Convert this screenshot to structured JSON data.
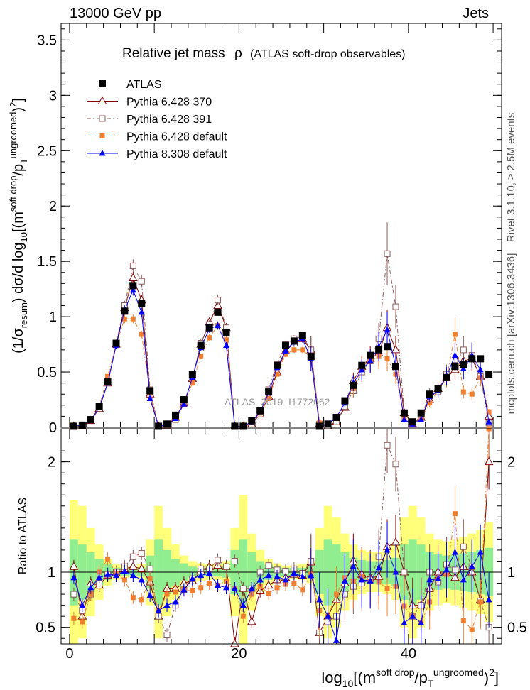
{
  "header": {
    "left": "13000 GeV pp",
    "right": "Jets"
  },
  "side_texts": {
    "rivet": "Rivet 3.1.10, ≥ 2.5M events",
    "mcplots": "mcplots.cern.ch [arXiv:1306.3436]"
  },
  "chart_data": [
    {
      "type": "line",
      "panel": "main",
      "title": "Relative jet mass",
      "title_symbol": "ρ",
      "subtitle": "(ATLAS soft-drop observables)",
      "watermark": "ATLAS_2019_I1772062",
      "ylabel": {
        "pre": "(1/σ",
        "sub1": "resum",
        "mid": ") dσ/d log",
        "sub2": "10",
        "mid2": "[(m",
        "sup1": "soft drop",
        "mid3": "/p",
        "sub3": "T",
        "sup2": "ungroomed",
        "post": ")",
        "sup3": "2",
        "end": "]"
      },
      "xlim": [
        -1,
        51
      ],
      "ylim": [
        0,
        3.65
      ],
      "yticks": [
        "0",
        "0.5",
        "1",
        "1.5",
        "2",
        "2.5",
        "3",
        "3.5"
      ],
      "legend_position": "top-left",
      "series": [
        {
          "name": "ATLAS",
          "color": "#000000",
          "marker": "filled-square",
          "x": [
            0.5,
            1.5,
            2.5,
            3.5,
            4.5,
            5.5,
            6.5,
            7.5,
            8.5,
            9.5,
            10.5,
            11.5,
            12.5,
            13.5,
            14.5,
            15.5,
            16.5,
            17.5,
            18.5,
            19.5,
            20.5,
            21.5,
            22.5,
            23.5,
            24.5,
            25.5,
            26.5,
            27.5,
            28.5,
            29.5,
            30.5,
            31.5,
            32.5,
            33.5,
            34.5,
            35.5,
            36.5,
            37.5,
            38.5,
            39.5,
            40.5,
            41.5,
            42.5,
            43.5,
            44.5,
            45.5,
            46.5,
            47.5,
            48.5,
            49.5
          ],
          "y": [
            0.01,
            0.02,
            0.07,
            0.19,
            0.41,
            0.76,
            1.05,
            1.28,
            1.12,
            0.33,
            0.01,
            0.03,
            0.11,
            0.25,
            0.48,
            0.74,
            0.9,
            1.04,
            0.86,
            0.01,
            0.01,
            0.06,
            0.15,
            0.32,
            0.56,
            0.74,
            0.78,
            0.83,
            0.64,
            0.01,
            0.03,
            0.09,
            0.24,
            0.38,
            0.56,
            0.65,
            0.7,
            0.73,
            0.55,
            0.13,
            0.05,
            0.13,
            0.3,
            0.35,
            0.45,
            0.55,
            0.57,
            0.62,
            0.62,
            0.48
          ]
        },
        {
          "name": "Pythia 6.428 370",
          "color": "#800000",
          "marker": "open-triangle",
          "dash": "",
          "x": [
            0.5,
            1.5,
            2.5,
            3.5,
            4.5,
            5.5,
            6.5,
            7.5,
            8.5,
            9.5,
            10.5,
            11.5,
            12.5,
            13.5,
            14.5,
            15.5,
            16.5,
            17.5,
            18.5,
            19.5,
            20.5,
            21.5,
            22.5,
            23.5,
            24.5,
            25.5,
            26.5,
            27.5,
            28.5,
            29.5,
            30.5,
            31.5,
            32.5,
            33.5,
            34.5,
            35.5,
            36.5,
            37.5,
            38.5,
            39.5,
            40.5,
            41.5,
            42.5,
            43.5,
            44.5,
            45.5,
            46.5,
            47.5,
            48.5,
            49.5
          ],
          "y": [
            0.01,
            0.01,
            0.06,
            0.17,
            0.4,
            0.75,
            1.08,
            1.35,
            1.15,
            0.3,
            0.01,
            0.02,
            0.09,
            0.22,
            0.44,
            0.75,
            0.95,
            1.1,
            0.9,
            0.01,
            0.01,
            0.03,
            0.12,
            0.28,
            0.5,
            0.69,
            0.76,
            0.8,
            0.7,
            0.03,
            0.01,
            0.05,
            0.18,
            0.42,
            0.55,
            0.62,
            0.67,
            0.9,
            0.7,
            0.13,
            0.03,
            0.09,
            0.25,
            0.35,
            0.45,
            0.52,
            0.6,
            0.62,
            0.46,
            0.1
          ]
        },
        {
          "name": "Pythia 6.428 391",
          "color": "#8c5a5a",
          "marker": "open-square",
          "dash": "6,3,2,3",
          "x": [
            0.5,
            1.5,
            2.5,
            3.5,
            4.5,
            5.5,
            6.5,
            7.5,
            8.5,
            9.5,
            10.5,
            11.5,
            12.5,
            13.5,
            14.5,
            15.5,
            16.5,
            17.5,
            18.5,
            19.5,
            20.5,
            21.5,
            22.5,
            23.5,
            24.5,
            25.5,
            26.5,
            27.5,
            28.5,
            29.5,
            30.5,
            31.5,
            32.5,
            33.5,
            34.5,
            35.5,
            36.5,
            37.5,
            38.5,
            39.5,
            40.5,
            41.5,
            42.5,
            43.5,
            44.5,
            45.5,
            46.5,
            47.5,
            48.5,
            49.5
          ],
          "y": [
            0.01,
            0.01,
            0.07,
            0.17,
            0.4,
            0.76,
            1.1,
            1.46,
            1.32,
            0.34,
            0.01,
            0.02,
            0.07,
            0.21,
            0.45,
            0.76,
            0.93,
            1.15,
            0.9,
            0.01,
            0.01,
            0.05,
            0.15,
            0.34,
            0.57,
            0.75,
            0.8,
            0.82,
            0.7,
            0.03,
            0.01,
            0.05,
            0.19,
            0.33,
            0.5,
            0.6,
            0.8,
            1.57,
            1.09,
            0.13,
            0.03,
            0.09,
            0.3,
            0.32,
            0.48,
            0.56,
            0.7,
            0.65,
            0.46,
            0.04
          ]
        },
        {
          "name": "Pythia 6.428 default",
          "color": "#f08030",
          "marker": "filled-square-small",
          "dash": "6,3,2,3",
          "x": [
            0.5,
            1.5,
            2.5,
            3.5,
            4.5,
            5.5,
            6.5,
            7.5,
            8.5,
            9.5,
            10.5,
            11.5,
            12.5,
            13.5,
            14.5,
            15.5,
            16.5,
            17.5,
            18.5,
            19.5,
            20.5,
            21.5,
            22.5,
            23.5,
            24.5,
            25.5,
            26.5,
            27.5,
            28.5,
            29.5,
            30.5,
            31.5,
            32.5,
            33.5,
            34.5,
            35.5,
            36.5,
            37.5,
            38.5,
            39.5,
            40.5,
            41.5,
            42.5,
            43.5,
            44.5,
            45.5,
            46.5,
            47.5,
            48.5,
            49.5
          ],
          "y": [
            0.01,
            0.01,
            0.06,
            0.19,
            0.46,
            0.75,
            0.98,
            0.98,
            0.84,
            0.31,
            0.01,
            0.03,
            0.09,
            0.21,
            0.4,
            0.64,
            0.81,
            0.92,
            0.79,
            0.01,
            0.01,
            0.05,
            0.13,
            0.26,
            0.48,
            0.66,
            0.7,
            0.7,
            0.63,
            0.04,
            0.02,
            0.08,
            0.23,
            0.35,
            0.54,
            0.6,
            0.64,
            0.62,
            0.48,
            0.09,
            0.03,
            0.07,
            0.22,
            0.33,
            0.44,
            0.84,
            0.32,
            0.3,
            0.45,
            0.14
          ]
        },
        {
          "name": "Pythia 8.308 default",
          "color": "#0000ff",
          "marker": "filled-triangle",
          "dash": "",
          "x": [
            0.5,
            1.5,
            2.5,
            3.5,
            4.5,
            5.5,
            6.5,
            7.5,
            8.5,
            9.5,
            10.5,
            11.5,
            12.5,
            13.5,
            14.5,
            15.5,
            16.5,
            17.5,
            18.5,
            19.5,
            20.5,
            21.5,
            22.5,
            23.5,
            24.5,
            25.5,
            26.5,
            27.5,
            28.5,
            29.5,
            30.5,
            31.5,
            32.5,
            33.5,
            34.5,
            35.5,
            36.5,
            37.5,
            38.5,
            39.5,
            40.5,
            41.5,
            42.5,
            43.5,
            44.5,
            45.5,
            46.5,
            47.5,
            48.5,
            49.5
          ],
          "y": [
            0.01,
            0.02,
            0.06,
            0.18,
            0.4,
            0.74,
            1.06,
            1.24,
            1.04,
            0.26,
            0.01,
            0.02,
            0.08,
            0.21,
            0.45,
            0.72,
            0.89,
            0.92,
            0.74,
            0.01,
            0.01,
            0.05,
            0.14,
            0.31,
            0.54,
            0.69,
            0.77,
            0.8,
            0.62,
            0.01,
            0.03,
            0.09,
            0.22,
            0.4,
            0.52,
            0.6,
            0.73,
            0.88,
            0.55,
            0.07,
            0.03,
            0.07,
            0.28,
            0.33,
            0.46,
            0.65,
            0.53,
            0.65,
            0.52,
            0.05
          ]
        }
      ]
    },
    {
      "type": "line",
      "panel": "ratio",
      "ylabel": "Ratio to ATLAS",
      "xlabel": {
        "pre": "log",
        "sub1": "10",
        "mid": "[(m",
        "sup1": "soft drop",
        "mid2": "/p",
        "sub2": "T",
        "sup2": "ungroomed",
        "post": ")",
        "sup3": "2",
        "end": "]"
      },
      "xlim": [
        -1,
        51
      ],
      "ylim": [
        0.35,
        2.3
      ],
      "xticks": [
        "0",
        "20",
        "40"
      ],
      "yticks": [
        "0.5",
        "1",
        "2"
      ],
      "reference_line": 1,
      "band_colors": {
        "outer": "#ffff7a",
        "inner": "#90ee90"
      },
      "bands": {
        "x": [
          0.5,
          1.5,
          2.5,
          3.5,
          4.5,
          5.5,
          6.5,
          7.5,
          8.5,
          9.5,
          10.5,
          11.5,
          12.5,
          13.5,
          14.5,
          15.5,
          16.5,
          17.5,
          18.5,
          19.5,
          20.5,
          21.5,
          22.5,
          23.5,
          24.5,
          25.5,
          26.5,
          27.5,
          28.5,
          29.5,
          30.5,
          31.5,
          32.5,
          33.5,
          34.5,
          35.5,
          36.5,
          37.5,
          38.5,
          39.5,
          40.5,
          41.5,
          42.5,
          43.5,
          44.5,
          45.5,
          46.5,
          47.5,
          48.5,
          49.5
        ],
        "outer": [
          0.65,
          0.6,
          0.4,
          0.25,
          0.12,
          0.07,
          0.05,
          0.05,
          0.07,
          0.3,
          0.6,
          0.4,
          0.25,
          0.15,
          0.1,
          0.08,
          0.07,
          0.07,
          0.1,
          0.4,
          0.7,
          0.35,
          0.2,
          0.12,
          0.08,
          0.06,
          0.06,
          0.07,
          0.1,
          0.4,
          0.6,
          0.5,
          0.35,
          0.25,
          0.2,
          0.18,
          0.18,
          0.2,
          0.25,
          0.5,
          0.6,
          0.5,
          0.35,
          0.3,
          0.28,
          0.3,
          0.32,
          0.35,
          0.38,
          0.45
        ],
        "inner": [
          0.3,
          0.25,
          0.18,
          0.12,
          0.07,
          0.04,
          0.03,
          0.03,
          0.04,
          0.15,
          0.3,
          0.2,
          0.12,
          0.08,
          0.05,
          0.04,
          0.04,
          0.04,
          0.05,
          0.2,
          0.3,
          0.18,
          0.1,
          0.07,
          0.05,
          0.04,
          0.04,
          0.04,
          0.06,
          0.2,
          0.3,
          0.25,
          0.18,
          0.13,
          0.11,
          0.1,
          0.1,
          0.11,
          0.13,
          0.25,
          0.3,
          0.25,
          0.18,
          0.16,
          0.15,
          0.16,
          0.17,
          0.18,
          0.2,
          0.22
        ]
      },
      "series": [
        {
          "name": "Pythia 6.428 370",
          "y": [
            1.05,
            0.6,
            0.9,
            0.88,
            0.97,
            0.99,
            1.03,
            1.05,
            1.03,
            0.91,
            0.6,
            0.85,
            0.85,
            0.9,
            0.92,
            1.01,
            1.05,
            1.06,
            1.05,
            0.35,
            0.85,
            0.55,
            0.83,
            0.88,
            0.93,
            0.95,
            0.98,
            0.97,
            1.09,
            0.45,
            0.6,
            0.75,
            0.9,
            1.1,
            0.98,
            0.95,
            0.96,
            1.23,
            1.27,
            1.0,
            0.7,
            0.7,
            0.85,
            1.0,
            1.0,
            0.95,
            1.05,
            1.0,
            0.75,
            2.0
          ]
        },
        {
          "name": "Pythia 6.428 391",
          "y": [
            0.8,
            0.65,
            0.8,
            0.9,
            0.98,
            1.0,
            1.05,
            1.14,
            1.17,
            1.03,
            0.6,
            0.43,
            0.7,
            0.84,
            0.94,
            1.03,
            1.03,
            1.11,
            1.05,
            1.1,
            0.85,
            0.85,
            1.0,
            1.06,
            1.02,
            1.01,
            1.03,
            0.99,
            1.1,
            0.45,
            0.55,
            0.6,
            0.8,
            0.87,
            0.9,
            0.93,
            1.14,
            2.15,
            1.98,
            1.0,
            0.6,
            0.7,
            1.0,
            0.91,
            1.07,
            1.02,
            1.23,
            1.05,
            0.74,
            0.5
          ]
        },
        {
          "name": "Pythia 6.428 default",
          "y": [
            0.58,
            0.55,
            0.8,
            1.0,
            1.12,
            0.99,
            0.93,
            0.77,
            0.75,
            0.94,
            0.65,
            0.8,
            0.82,
            0.84,
            0.83,
            0.86,
            0.9,
            0.88,
            0.92,
            0.85,
            0.6,
            0.8,
            0.87,
            0.81,
            0.86,
            0.89,
            0.9,
            0.84,
            0.98,
            0.65,
            0.6,
            0.8,
            0.95,
            0.92,
            0.96,
            0.92,
            0.91,
            0.85,
            0.87,
            0.69,
            0.6,
            0.54,
            0.73,
            0.94,
            0.98,
            1.53,
            0.56,
            0.48,
            0.73,
            2.3
          ]
        },
        {
          "name": "Pythia 8.308 default",
          "y": [
            0.95,
            0.7,
            0.86,
            0.95,
            0.98,
            0.97,
            1.01,
            0.97,
            0.93,
            0.79,
            0.65,
            0.7,
            0.73,
            0.84,
            0.94,
            0.97,
            0.99,
            0.88,
            0.86,
            0.85,
            0.7,
            0.85,
            0.93,
            0.97,
            0.96,
            0.93,
            0.99,
            0.96,
            0.97,
            0.75,
            0.6,
            0.38,
            0.92,
            1.05,
            0.93,
            0.92,
            1.04,
            1.2,
            1.0,
            0.54,
            0.6,
            0.54,
            0.93,
            0.94,
            1.02,
            1.18,
            0.93,
            1.05,
            1.18,
            0.75
          ]
        }
      ]
    }
  ]
}
